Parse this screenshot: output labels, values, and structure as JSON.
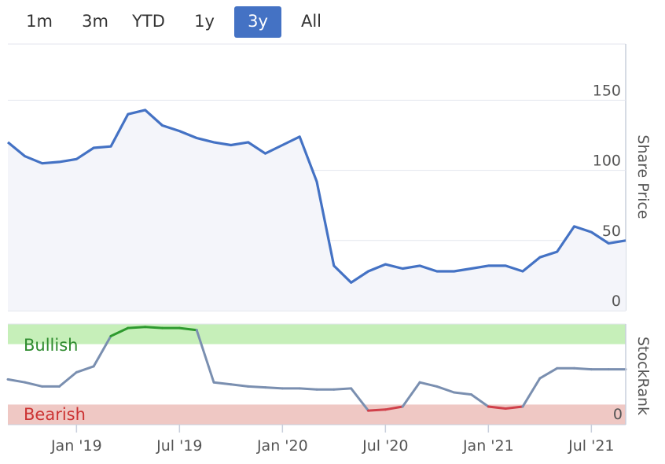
{
  "range_selector": {
    "buttons": [
      {
        "label": "1m",
        "active": false
      },
      {
        "label": "3m",
        "active": false
      },
      {
        "label": "YTD",
        "active": false
      },
      {
        "label": "1y",
        "active": false
      },
      {
        "label": "3y",
        "active": true
      },
      {
        "label": "All",
        "active": false
      }
    ]
  },
  "colors": {
    "price_line": "#4472c4",
    "price_area": "#f4f5fa",
    "bullish_zone": "#c6efb9",
    "bearish_zone": "#efc8c4",
    "bullish_text": "#2e8b2e",
    "bearish_text": "#cc3333",
    "rank_neutral": "#7a8fb0",
    "rank_bull": "#2e9a2e",
    "rank_bear": "#d0404a",
    "active_button": "#4472c4"
  },
  "chart_data": [
    {
      "type": "line",
      "ylabel": "Share Price",
      "ylim": [
        0,
        190
      ],
      "yticks": [
        0,
        50,
        100,
        150
      ],
      "grid": true,
      "x": [
        "2018-09",
        "2018-10",
        "2018-11",
        "2018-12",
        "2019-01",
        "2019-02",
        "2019-03",
        "2019-04",
        "2019-05",
        "2019-06",
        "2019-07",
        "2019-08",
        "2019-09",
        "2019-10",
        "2019-11",
        "2019-12",
        "2020-01",
        "2020-02",
        "2020-03",
        "2020-04",
        "2020-05",
        "2020-06",
        "2020-07",
        "2020-08",
        "2020-09",
        "2020-10",
        "2020-11",
        "2020-12",
        "2021-01",
        "2021-02",
        "2021-03",
        "2021-04",
        "2021-05",
        "2021-06",
        "2021-07",
        "2021-08",
        "2021-09"
      ],
      "series": [
        {
          "values": [
            120,
            110,
            105,
            106,
            108,
            116,
            117,
            140,
            143,
            132,
            128,
            123,
            120,
            118,
            120,
            112,
            118,
            124,
            92,
            32,
            20,
            28,
            33,
            30,
            32,
            28,
            28,
            30,
            32,
            32,
            28,
            38,
            42,
            60,
            56,
            48,
            50
          ]
        }
      ]
    },
    {
      "type": "line",
      "ylabel": "StockRank",
      "ylim": [
        0,
        100
      ],
      "yticks": [
        0
      ],
      "zones": [
        {
          "label": "Bullish",
          "from": 80,
          "to": 100
        },
        {
          "label": "Bearish",
          "from": 0,
          "to": 20
        }
      ],
      "x": [
        "2018-09",
        "2018-10",
        "2018-11",
        "2018-12",
        "2019-01",
        "2019-02",
        "2019-03",
        "2019-04",
        "2019-05",
        "2019-06",
        "2019-07",
        "2019-08",
        "2019-09",
        "2019-10",
        "2019-11",
        "2019-12",
        "2020-01",
        "2020-02",
        "2020-03",
        "2020-04",
        "2020-05",
        "2020-06",
        "2020-07",
        "2020-08",
        "2020-09",
        "2020-10",
        "2020-11",
        "2020-12",
        "2021-01",
        "2021-02",
        "2021-03",
        "2021-04",
        "2021-05",
        "2021-06",
        "2021-07",
        "2021-08",
        "2021-09"
      ],
      "series": [
        {
          "values": [
            45,
            42,
            38,
            38,
            52,
            58,
            88,
            96,
            97,
            96,
            96,
            94,
            42,
            40,
            38,
            37,
            36,
            36,
            35,
            35,
            36,
            14,
            15,
            18,
            42,
            38,
            32,
            30,
            18,
            16,
            18,
            46,
            56,
            56,
            55,
            55,
            55
          ]
        }
      ]
    }
  ],
  "x_axis": {
    "tick_labels": [
      "Jan '19",
      "Jul '19",
      "Jan '20",
      "Jul '20",
      "Jan '21",
      "Jul '21"
    ],
    "tick_positions": [
      "2019-01",
      "2019-07",
      "2020-01",
      "2020-07",
      "2021-01",
      "2021-07"
    ]
  }
}
